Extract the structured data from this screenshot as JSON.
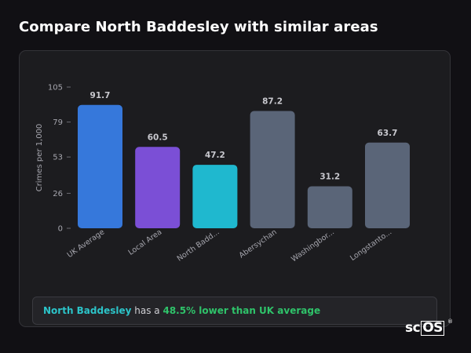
{
  "page": {
    "title": "Compare North Baddesley with similar areas"
  },
  "chart_data": {
    "type": "bar",
    "title": "",
    "xlabel": "",
    "ylabel": "Crimes per 1,000",
    "ylim": [
      0,
      105
    ],
    "yticks": [
      0,
      26,
      53,
      79,
      105
    ],
    "grid": false,
    "legend": "none",
    "categories": [
      "UK Average",
      "Local Area",
      "North Badd...",
      "Abersychan",
      "Washingbor...",
      "Longstanto..."
    ],
    "values": [
      91.7,
      60.5,
      47.2,
      87.2,
      31.2,
      63.7
    ],
    "value_labels": [
      "91.7",
      "60.5",
      "47.2",
      "87.2",
      "31.2",
      "63.7"
    ],
    "colors": [
      "#3678db",
      "#7b4fd6",
      "#1fb8cf",
      "#5a6578",
      "#5a6578",
      "#5a6578"
    ]
  },
  "footer": {
    "area_name": "North Baddesley",
    "middle_text": " has a ",
    "difference_text": "48.5% lower than UK average"
  },
  "logo": {
    "text_prefix": "sc",
    "text_boxed": "OS",
    "reg_mark": "®"
  },
  "colors": {
    "background": "#111014",
    "card": "#1c1c1f",
    "area_highlight": "#2cc4c9",
    "difference_highlight": "#2fc36a"
  }
}
